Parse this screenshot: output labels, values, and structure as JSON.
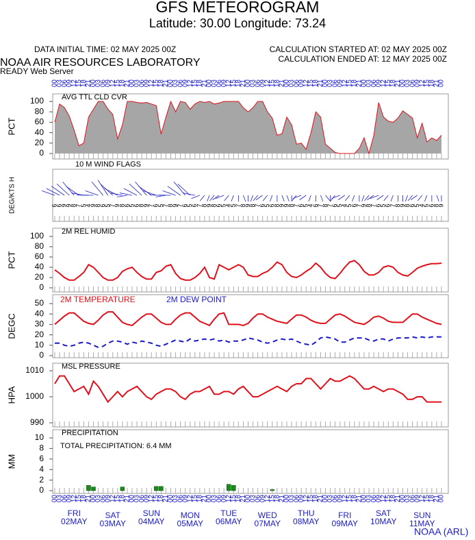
{
  "title": "GFS METEOROGRAM",
  "subtitle": "Latitude: 30.00 Longitude:  73.24",
  "data_initial": "DATA INITIAL TIME: 02 MAY 2025 00Z",
  "calc_started": "CALCULATION STARTED AT: 02 MAY 2025 00Z",
  "calc_ended": "CALCULATION ENDED AT: 12 MAY 2025 00Z",
  "org": "NOAA AIR RESOURCES LABORATORY",
  "server": "READY Web Server",
  "footer": "NOAA (ARL)",
  "hours": [
    "00",
    "03",
    "06",
    "09",
    "12",
    "15",
    "18",
    "21",
    "00",
    "03",
    "06",
    "09",
    "12",
    "15",
    "18",
    "21",
    "00",
    "03",
    "06",
    "09",
    "12",
    "15",
    "18",
    "21",
    "00",
    "03",
    "06",
    "09",
    "12",
    "15",
    "18",
    "21",
    "00",
    "03",
    "06",
    "09",
    "12",
    "15",
    "18",
    "21",
    "00",
    "03",
    "06",
    "09",
    "12",
    "15",
    "18",
    "21",
    "00",
    "03",
    "06",
    "09",
    "12",
    "15",
    "18",
    "21",
    "00",
    "03",
    "06",
    "09",
    "12",
    "15",
    "18",
    "21",
    "00",
    "03",
    "06",
    "09",
    "12",
    "15",
    "18",
    "21",
    "00",
    "03",
    "06",
    "09",
    "12",
    "15",
    "18",
    "21",
    "00"
  ],
  "days": [
    "FRI",
    "SAT",
    "SUN",
    "MON",
    "TUE",
    "WED",
    "THU",
    "FRI",
    "SAT",
    "SUN"
  ],
  "dates": [
    "02MAY",
    "03MAY",
    "04MAY",
    "05MAY",
    "06MAY",
    "07MAY",
    "08MAY",
    "09MAY",
    "10MAY",
    "11MAY"
  ],
  "chart_data": [
    {
      "type": "area",
      "title": "AVG TTL CLD CVR",
      "ylabel": "PCT",
      "color": "#a6a6a6",
      "line_color": "#e0101a",
      "ylim": [
        0,
        100
      ],
      "yticks": [
        0,
        20,
        40,
        60,
        80,
        100
      ],
      "values": [
        60,
        95,
        88,
        72,
        45,
        15,
        20,
        70,
        85,
        100,
        100,
        85,
        75,
        28,
        55,
        100,
        100,
        98,
        97,
        98,
        95,
        92,
        37,
        70,
        100,
        80,
        100,
        98,
        85,
        95,
        100,
        98,
        100,
        95,
        97,
        100,
        100,
        100,
        100,
        88,
        80,
        88,
        100,
        100,
        80,
        68,
        35,
        38,
        70,
        55,
        18,
        20,
        8,
        40,
        80,
        70,
        18,
        10,
        2,
        0,
        0,
        0,
        0,
        10,
        30,
        0,
        35,
        98,
        70,
        62,
        60,
        68,
        82,
        75,
        68,
        30,
        58,
        22,
        30,
        25,
        35
      ]
    },
    {
      "type": "wind",
      "title": "10 M  WIND FLAGS",
      "ylabel": "DEG/KTS  H",
      "color": "#1a1acc",
      "speeds": [
        6,
        6,
        9,
        9,
        8,
        7,
        5,
        4,
        9,
        8,
        6,
        5,
        7,
        9,
        8,
        6,
        5,
        6,
        8,
        9,
        7,
        6,
        5,
        7,
        8,
        9,
        7,
        6,
        5,
        6,
        7,
        8,
        9,
        8,
        6,
        5,
        4,
        5,
        7,
        8,
        9,
        8,
        7,
        6,
        5,
        6,
        8,
        9,
        9,
        8,
        7,
        6,
        5,
        4,
        6,
        7,
        8,
        7,
        6,
        5,
        4,
        5,
        6,
        7,
        9,
        8,
        7,
        6,
        5,
        6,
        7,
        8,
        9,
        8,
        6,
        5,
        4,
        5,
        6,
        8,
        9
      ],
      "directions": [
        260,
        270,
        280,
        290,
        300,
        280,
        250,
        240,
        240,
        260,
        300,
        310,
        290,
        270,
        250,
        230,
        250,
        270,
        290,
        300,
        280,
        260,
        240,
        230,
        240,
        260,
        280,
        300,
        290,
        250,
        220,
        200,
        190,
        200,
        210,
        220,
        200,
        190,
        180,
        170,
        180,
        190,
        200,
        210,
        200,
        190,
        180,
        170,
        170,
        180,
        200,
        220,
        210,
        190,
        180,
        170,
        160,
        180,
        200,
        220,
        210,
        200,
        190,
        180,
        190,
        200,
        210,
        220,
        210,
        200,
        190,
        180,
        180,
        190,
        200,
        210,
        200,
        190,
        180,
        170,
        180
      ]
    },
    {
      "type": "line",
      "title": "2M REL HUMID",
      "ylabel": "PCT",
      "ylim": [
        0,
        100
      ],
      "yticks": [
        0,
        20,
        40,
        60,
        80,
        100
      ],
      "series": [
        {
          "color": "#e0101a",
          "values": [
            35,
            28,
            20,
            15,
            15,
            22,
            30,
            45,
            40,
            30,
            20,
            15,
            15,
            20,
            32,
            37,
            40,
            30,
            22,
            17,
            17,
            30,
            33,
            42,
            45,
            28,
            18,
            15,
            15,
            20,
            28,
            40,
            20,
            17,
            45,
            40,
            35,
            40,
            45,
            40,
            25,
            22,
            22,
            28,
            32,
            40,
            50,
            45,
            30,
            22,
            20,
            25,
            32,
            38,
            48,
            40,
            28,
            20,
            18,
            28,
            40,
            50,
            53,
            45,
            32,
            25,
            25,
            30,
            40,
            43,
            40,
            30,
            25,
            23,
            30,
            38,
            42,
            45,
            47,
            47,
            48
          ]
        }
      ]
    },
    {
      "type": "line",
      "ylabel": "DEGC",
      "ylim": [
        0,
        50
      ],
      "yticks": [
        0,
        10,
        20,
        30,
        40,
        50
      ],
      "series": [
        {
          "name": "2M TEMPERATURE",
          "color": "#e0101a",
          "dashed": false,
          "values": [
            30,
            34,
            38,
            41,
            41,
            37,
            33,
            31,
            30,
            34,
            39,
            42,
            42,
            37,
            32,
            30,
            29,
            33,
            37,
            40,
            40,
            36,
            32,
            30,
            30,
            35,
            39,
            41,
            41,
            37,
            33,
            31,
            29,
            35,
            40,
            41,
            30,
            30,
            30,
            29,
            31,
            36,
            40,
            40,
            37,
            35,
            33,
            32,
            31,
            35,
            39,
            39,
            37,
            34,
            32,
            31,
            31,
            35,
            39,
            40,
            38,
            35,
            32,
            31,
            30,
            33,
            37,
            38,
            36,
            33,
            32,
            32,
            32,
            36,
            40,
            40,
            37,
            35,
            33,
            31,
            30
          ]
        },
        {
          "name": "2M  DEW POINT",
          "color": "#1a1acc",
          "dashed": true,
          "values": [
            12,
            12,
            10,
            9,
            10,
            12,
            13,
            12,
            10,
            8,
            9,
            12,
            14,
            14,
            13,
            11,
            13,
            12,
            14,
            13,
            12,
            10,
            9,
            11,
            13,
            15,
            14,
            13,
            16,
            14,
            15,
            16,
            15,
            16,
            14,
            15,
            13,
            14,
            14,
            15,
            17,
            16,
            15,
            13,
            12,
            13,
            15,
            16,
            15,
            16,
            14,
            12,
            11,
            10,
            13,
            17,
            18,
            17,
            16,
            13,
            13,
            15,
            17,
            17,
            17,
            15,
            14,
            16,
            16,
            14,
            16,
            17,
            17,
            17,
            18,
            17,
            18,
            17,
            18,
            18,
            18
          ]
        }
      ]
    },
    {
      "type": "line",
      "title": "MSL PRESSURE",
      "ylabel": "HPA",
      "ylim": [
        990,
        1010
      ],
      "yticks": [
        990,
        1000,
        1010
      ],
      "series": [
        {
          "color": "#e0101a",
          "values": [
            1005,
            1008,
            1008,
            1005,
            1002,
            1003,
            1004,
            1001,
            1006,
            1004,
            1001,
            998,
            1000,
            1002,
            1000,
            1002,
            1003,
            1004,
            1002,
            1000,
            999,
            1001,
            1002,
            1003,
            1003,
            1002,
            1000,
            999,
            1001,
            1002,
            1002,
            1003,
            1004,
            1001,
            1001,
            1002,
            1002,
            1001,
            1003,
            1004,
            1002,
            1000,
            1000,
            1001,
            1002,
            1003,
            1004,
            1003,
            1002,
            1004,
            1005,
            1005,
            1007,
            1007,
            1005,
            1003,
            1005,
            1007,
            1006,
            1006,
            1007,
            1008,
            1007,
            1005,
            1003,
            1003,
            1004,
            1003,
            1002,
            1003,
            1003,
            1002,
            1001,
            999,
            999,
            1000,
            1000,
            998,
            998,
            998,
            998
          ]
        }
      ]
    },
    {
      "type": "bar",
      "title": "PRECIPITATION",
      "annotation": "TOTAL PRECIPITATION:   6.4 MM",
      "ylabel": "MM",
      "color": "#1a8a1a",
      "ylim": [
        0,
        10
      ],
      "yticks": [
        0,
        2,
        4,
        6,
        8,
        10
      ],
      "values": [
        0,
        0,
        0,
        0,
        0,
        0,
        0,
        1.0,
        0.7,
        0,
        0,
        0,
        0,
        0,
        0.7,
        0,
        0,
        0,
        0,
        0,
        0,
        0.8,
        0.8,
        0,
        0,
        0,
        0,
        0,
        0,
        0,
        0,
        0,
        0,
        0,
        0,
        0,
        1.2,
        1.0,
        0,
        0,
        0,
        0,
        0,
        0,
        0,
        0.2,
        0,
        0,
        0,
        0,
        0,
        0,
        0,
        0,
        0,
        0,
        0,
        0,
        0,
        0,
        0,
        0,
        0,
        0,
        0,
        0,
        0,
        0,
        0,
        0,
        0,
        0,
        0,
        0,
        0,
        0,
        0,
        0,
        0,
        0,
        0
      ]
    }
  ]
}
